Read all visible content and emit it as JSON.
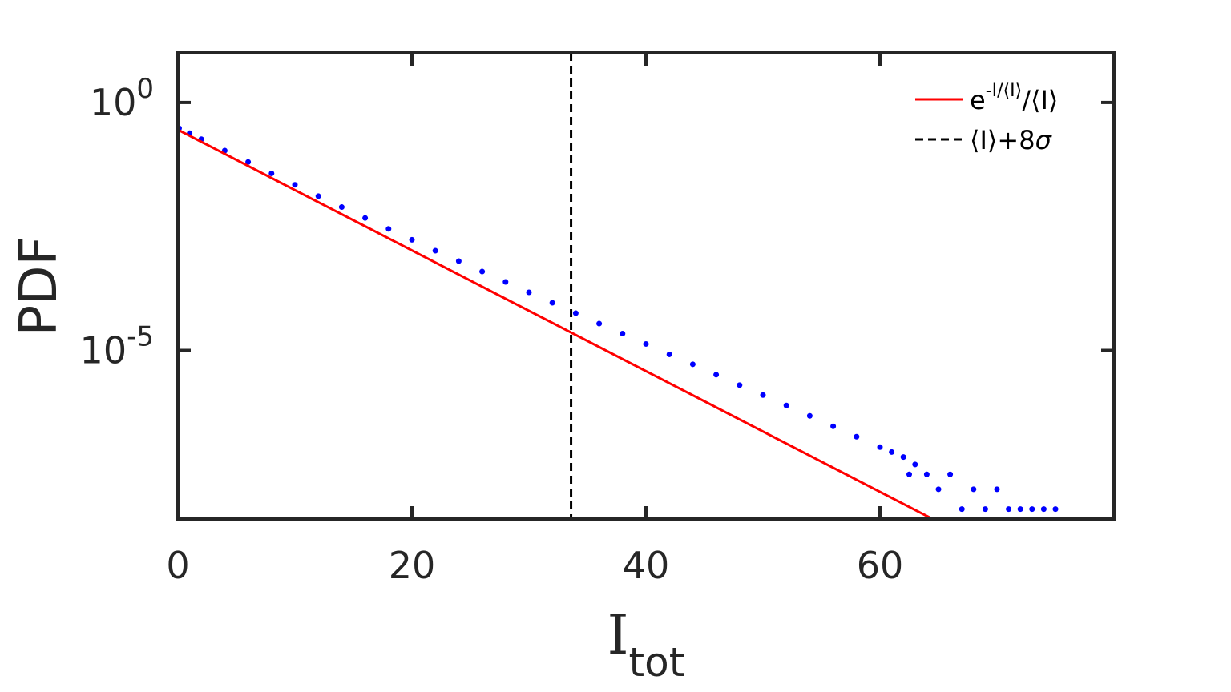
{
  "chart_data": {
    "type": "scatter",
    "ylabel": "PDF",
    "xlabel": {
      "main": "I",
      "sub": "tot"
    },
    "xlim": [
      0,
      80
    ],
    "ylim_log10": [
      -8.4,
      1
    ],
    "yscale": "log",
    "x_ticks": [
      0,
      20,
      40,
      60
    ],
    "x_tick_labels": [
      "0",
      "20",
      "40",
      "60"
    ],
    "y_ticks": [
      {
        "base": "10",
        "exp": "0",
        "log10": 0
      },
      {
        "base": "10",
        "exp": "-5",
        "log10": -5
      }
    ],
    "grid": false,
    "legend_position": "top-right",
    "legend": [
      {
        "style": "solid",
        "color": "#ff0000",
        "text_main": "e",
        "text_sup": "-I/⟨I⟩",
        "text_tail": "/⟨I⟩"
      },
      {
        "style": "dashed",
        "color": "#000000",
        "text_main": "⟨I⟩+8",
        "text_tail": "σ"
      }
    ],
    "series": [
      {
        "kind": "scatter",
        "color": "#0000ff",
        "points": [
          [
            0.1,
            -0.52
          ],
          [
            1,
            -0.62
          ],
          [
            2,
            -0.74
          ],
          [
            4,
            -0.97
          ],
          [
            6,
            -1.2
          ],
          [
            8,
            -1.43
          ],
          [
            10,
            -1.66
          ],
          [
            12,
            -1.89
          ],
          [
            14,
            -2.11
          ],
          [
            16,
            -2.33
          ],
          [
            18,
            -2.55
          ],
          [
            20,
            -2.77
          ],
          [
            22,
            -2.99
          ],
          [
            24,
            -3.2
          ],
          [
            26,
            -3.41
          ],
          [
            28,
            -3.62
          ],
          [
            30,
            -3.83
          ],
          [
            32,
            -4.04
          ],
          [
            34,
            -4.25
          ],
          [
            36,
            -4.46
          ],
          [
            38,
            -4.66
          ],
          [
            40,
            -4.87
          ],
          [
            42,
            -5.08
          ],
          [
            44,
            -5.28
          ],
          [
            46,
            -5.49
          ],
          [
            48,
            -5.7
          ],
          [
            50,
            -5.9
          ],
          [
            52,
            -6.11
          ],
          [
            54,
            -6.32
          ],
          [
            56,
            -6.53
          ],
          [
            58,
            -6.74
          ],
          [
            60,
            -6.95
          ],
          [
            61,
            -7.05
          ],
          [
            62,
            -7.15
          ],
          [
            62.5,
            -7.5
          ],
          [
            63,
            -7.3
          ],
          [
            64,
            -7.5
          ],
          [
            65,
            -7.8
          ],
          [
            66,
            -7.5
          ],
          [
            67,
            -8.2
          ],
          [
            68,
            -7.8
          ],
          [
            69,
            -8.2
          ],
          [
            70,
            -7.8
          ],
          [
            71,
            -8.2
          ],
          [
            72,
            -8.2
          ],
          [
            73,
            -8.2
          ],
          [
            74,
            -8.2
          ],
          [
            75,
            -8.2
          ]
        ]
      },
      {
        "kind": "line",
        "style": "solid",
        "color": "#ff0000",
        "points": [
          [
            0,
            -0.55
          ],
          [
            64.5,
            -8.4
          ]
        ]
      },
      {
        "kind": "vline",
        "style": "dashed",
        "color": "#000000",
        "x": 33.6
      }
    ]
  }
}
